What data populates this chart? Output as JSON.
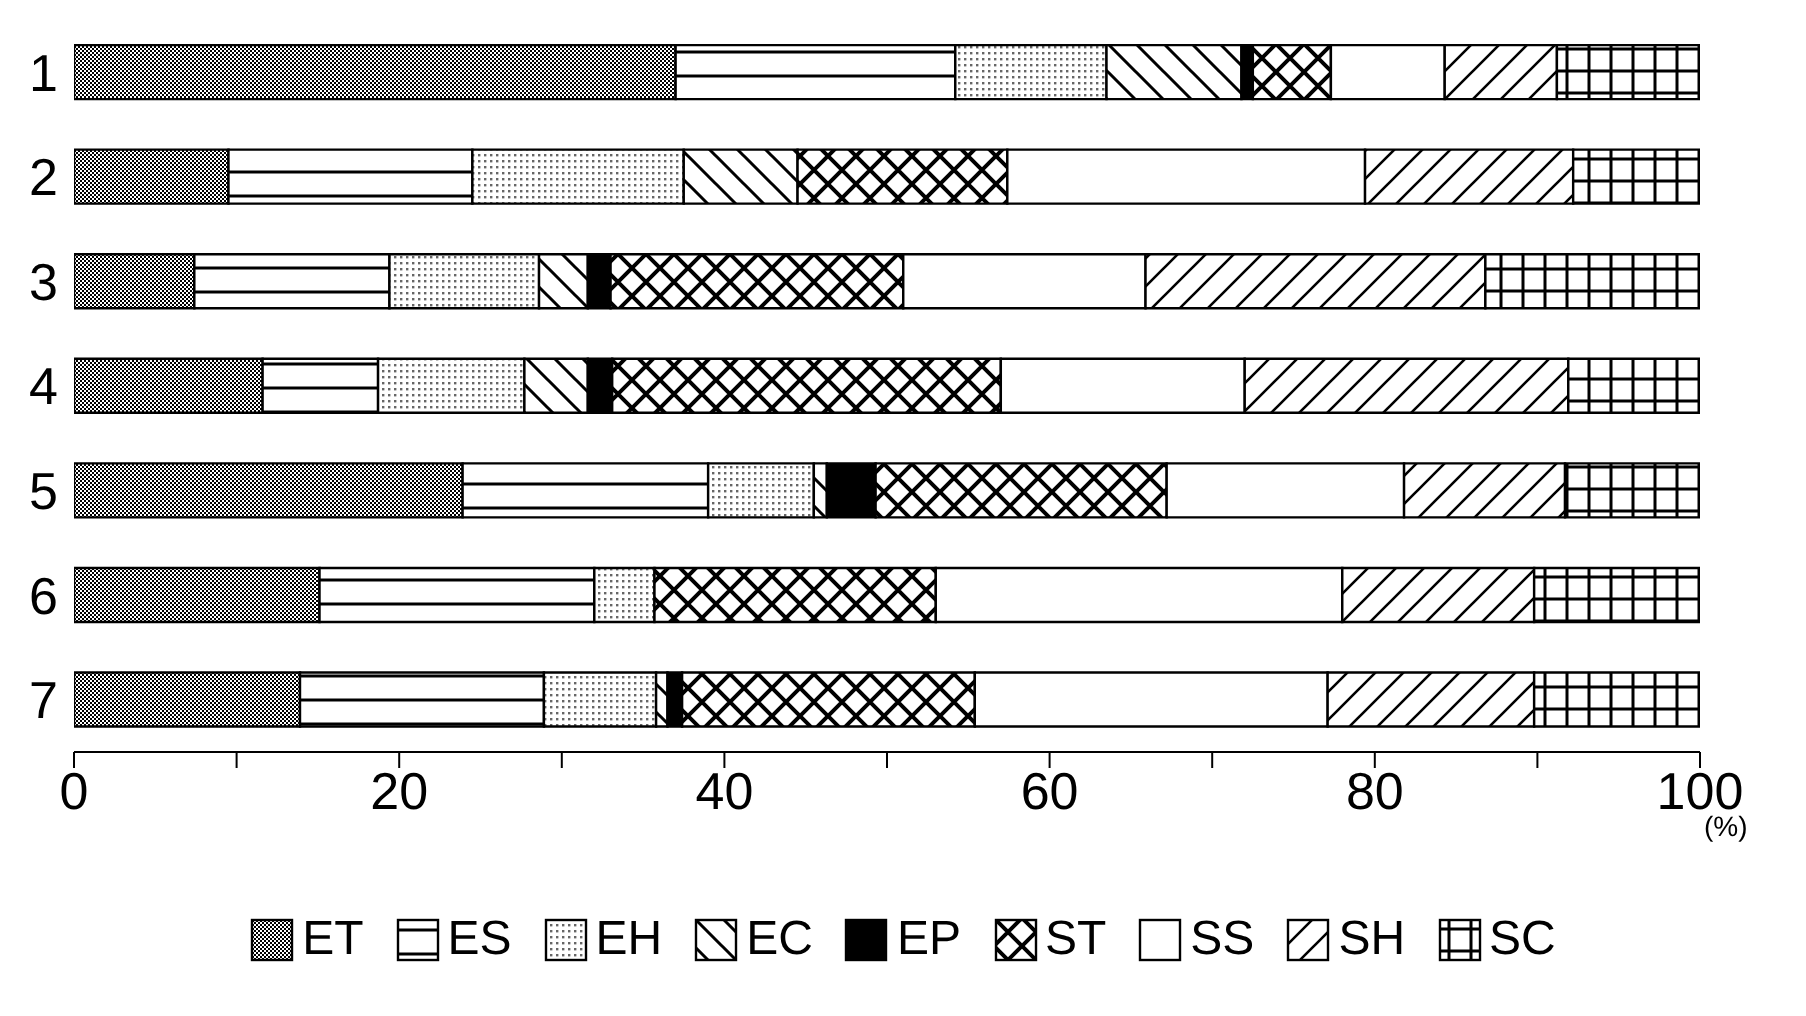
{
  "chart_data": {
    "type": "bar",
    "orientation": "horizontal",
    "stacked": true,
    "categories": [
      "1",
      "2",
      "3",
      "4",
      "5",
      "6",
      "7"
    ],
    "series": [
      {
        "name": "ET",
        "color": "#000000",
        "values": [
          37,
          9.5,
          7.4,
          11.6,
          23.9,
          15.1,
          13.9
        ]
      },
      {
        "name": "ES",
        "color": "#000000",
        "values": [
          17.2,
          15,
          12,
          7.1,
          15.1,
          16.9,
          15
        ]
      },
      {
        "name": "EH",
        "color": "#000000",
        "values": [
          9.3,
          13,
          9.2,
          9,
          6.5,
          3.7,
          6.9
        ]
      },
      {
        "name": "EC",
        "color": "#000000",
        "values": [
          8.3,
          7,
          3,
          3.9,
          0.8,
          0,
          0.7
        ]
      },
      {
        "name": "EP",
        "color": "#000000",
        "values": [
          0.7,
          0,
          1.4,
          1.5,
          3,
          0,
          0.9
        ]
      },
      {
        "name": "ST",
        "color": "#000000",
        "values": [
          4.8,
          12.9,
          18,
          23.9,
          17.9,
          17.3,
          18
        ]
      },
      {
        "name": "SS",
        "color": "#000000",
        "values": [
          7,
          22,
          14.9,
          15,
          14.6,
          25,
          21.7
        ]
      },
      {
        "name": "SH",
        "color": "#000000",
        "values": [
          6.9,
          12.8,
          20.9,
          19.9,
          9.9,
          11.8,
          12.7
        ]
      },
      {
        "name": "SC",
        "color": "#000000",
        "values": [
          8.8,
          7.8,
          13.2,
          8.1,
          8.3,
          10.2,
          10.2
        ]
      }
    ],
    "xlim": [
      0,
      100
    ],
    "xticks": [
      0,
      {
        "value": 10,
        "label": null
      },
      20,
      {
        "value": 30,
        "label": null
      },
      40,
      {
        "value": 50,
        "label": null
      },
      60,
      {
        "value": 70,
        "label": null
      },
      80,
      {
        "value": 90,
        "label": null
      },
      100
    ],
    "xlabel": "(%)",
    "grid": false,
    "legend": "bottom"
  }
}
